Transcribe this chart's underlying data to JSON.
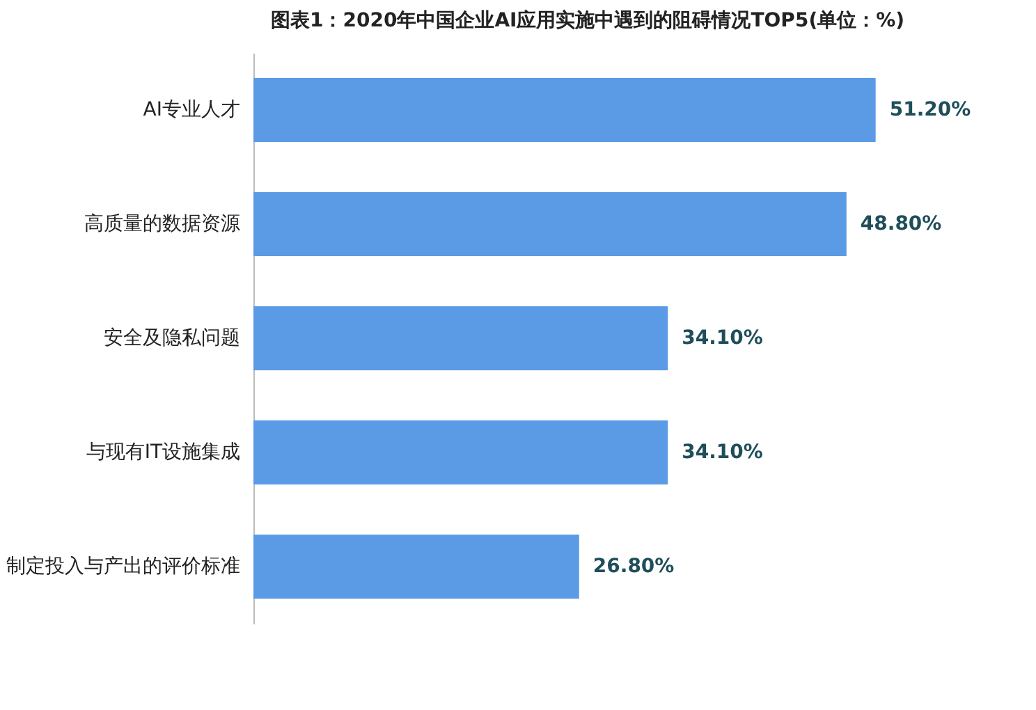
{
  "chart_data": {
    "type": "bar",
    "orientation": "horizontal",
    "title": "图表1：2020年中国企业AI应用实施中遇到的阻碍情况TOP5(单位：%)",
    "categories": [
      "AI专业人才",
      "高质量的数据资源",
      "安全及隐私问题",
      "与现有IT设施集成",
      "制定投入与产出的评价标准"
    ],
    "values": [
      51.2,
      48.8,
      34.1,
      34.1,
      26.8
    ],
    "value_labels": [
      "51.20%",
      "48.80%",
      "34.10%",
      "34.10%",
      "26.80%"
    ],
    "color": "#5b9be6"
  }
}
